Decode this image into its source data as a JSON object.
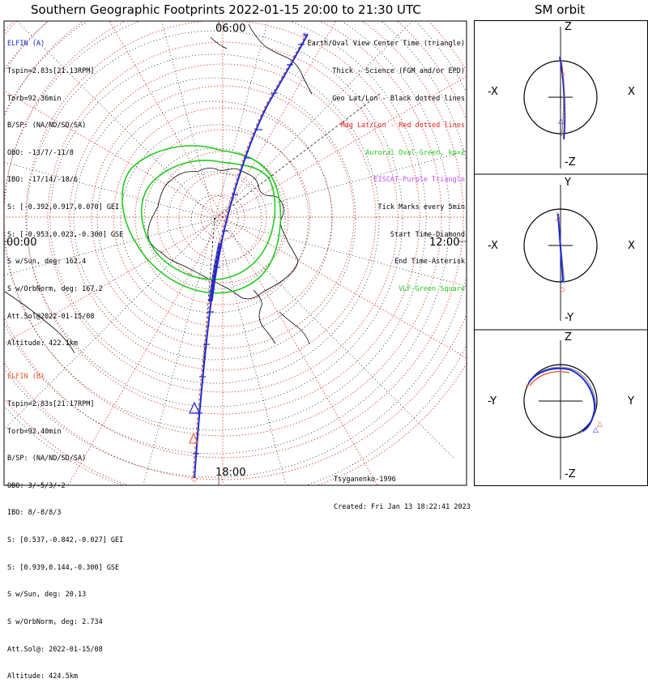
{
  "titles": {
    "main": "Southern Geographic Footprints 2022-01-15 20:00 to 21:30 UTC",
    "orbit": "SM orbit"
  },
  "clock_labels": {
    "top": "06:00",
    "left": "00:00",
    "right": "12:00",
    "bottom": "18:00"
  },
  "elfin_a": {
    "name": "ELFIN (A)",
    "color": "#1a2bd6",
    "lines": [
      "Tspin=2.83s[21.13RPM]",
      "Torb=92.36min",
      "B/SP: (NA/ND/SD/SA)",
      "OBO: -13/7/-11/8",
      "IBO: -17/14/-18/6",
      "S: [-0.392,0.917,0.070] GEI",
      "S: [-0.953,0.023,-0.300] GSE",
      "S w/Sun, deg: 162.4",
      "S w/OrbNorm, deg: 167.2",
      "Att.Sol@2022-01-15/08",
      "Altitude: 422.1km"
    ]
  },
  "elfin_b": {
    "name": "ELFIN (B)",
    "color": "#e8532a",
    "lines": [
      "Tspin=2.83s[21.17RPM]",
      "Torb=92.40min",
      "B/SP: (NA/ND/SD/SA)",
      "OBO: 3/-5/3/-2",
      "IBO: 8/-8/8/3",
      "S: [0.537,-0.842,-0.027] GEI",
      "S: [0.939,0.144,-0.300] GSE",
      "S w/Sun, deg: 20.13",
      "S w/OrbNorm, deg: 2.734",
      "Att.Sol@: 2022-01-15/08",
      "Altitude: 424.5km"
    ]
  },
  "legend": [
    {
      "text": "Earth/Oval View Center Time (triangle)",
      "color": "#000000"
    },
    {
      "text": "Thick - Science (FGM and/or EPD)",
      "color": "#000000"
    },
    {
      "text": "Geo Lat/Lon - Black dotted lines",
      "color": "#000000"
    },
    {
      "text": "Mag Lat/Lon - Red dotted lines",
      "color": "#e0201a"
    },
    {
      "text": "Auroral Oval-Green, kp=2",
      "color": "#22cc22"
    },
    {
      "text": "EISCAT-Purple Triangle",
      "color": "#c050ff"
    },
    {
      "text": "Tick Marks every 5min",
      "color": "#000000"
    },
    {
      "text": "Start Time-Diamond",
      "color": "#000000"
    },
    {
      "text": "End Time-Asterisk",
      "color": "#000000"
    },
    {
      "text": "VLF-Green Square",
      "color": "#22cc22"
    }
  ],
  "credits": {
    "model": "Tsyganenko-1996",
    "created": "Created: Fri Jan 13 18:22:41 2023"
  },
  "orbit_panels": [
    {
      "top": "Z",
      "bottom": "-Z",
      "left": "-X",
      "right": "X"
    },
    {
      "top": "Y",
      "bottom": "-Y",
      "left": "-X",
      "right": "X"
    },
    {
      "top": "Z",
      "bottom": "-Z",
      "left": "-Y",
      "right": "Y"
    }
  ],
  "colors": {
    "elfin_a": "#1a2bd6",
    "elfin_b": "#e8532a",
    "mag_grid": "#e0201a",
    "auroral_oval": "#22cc22",
    "geo_grid": "#000000"
  }
}
